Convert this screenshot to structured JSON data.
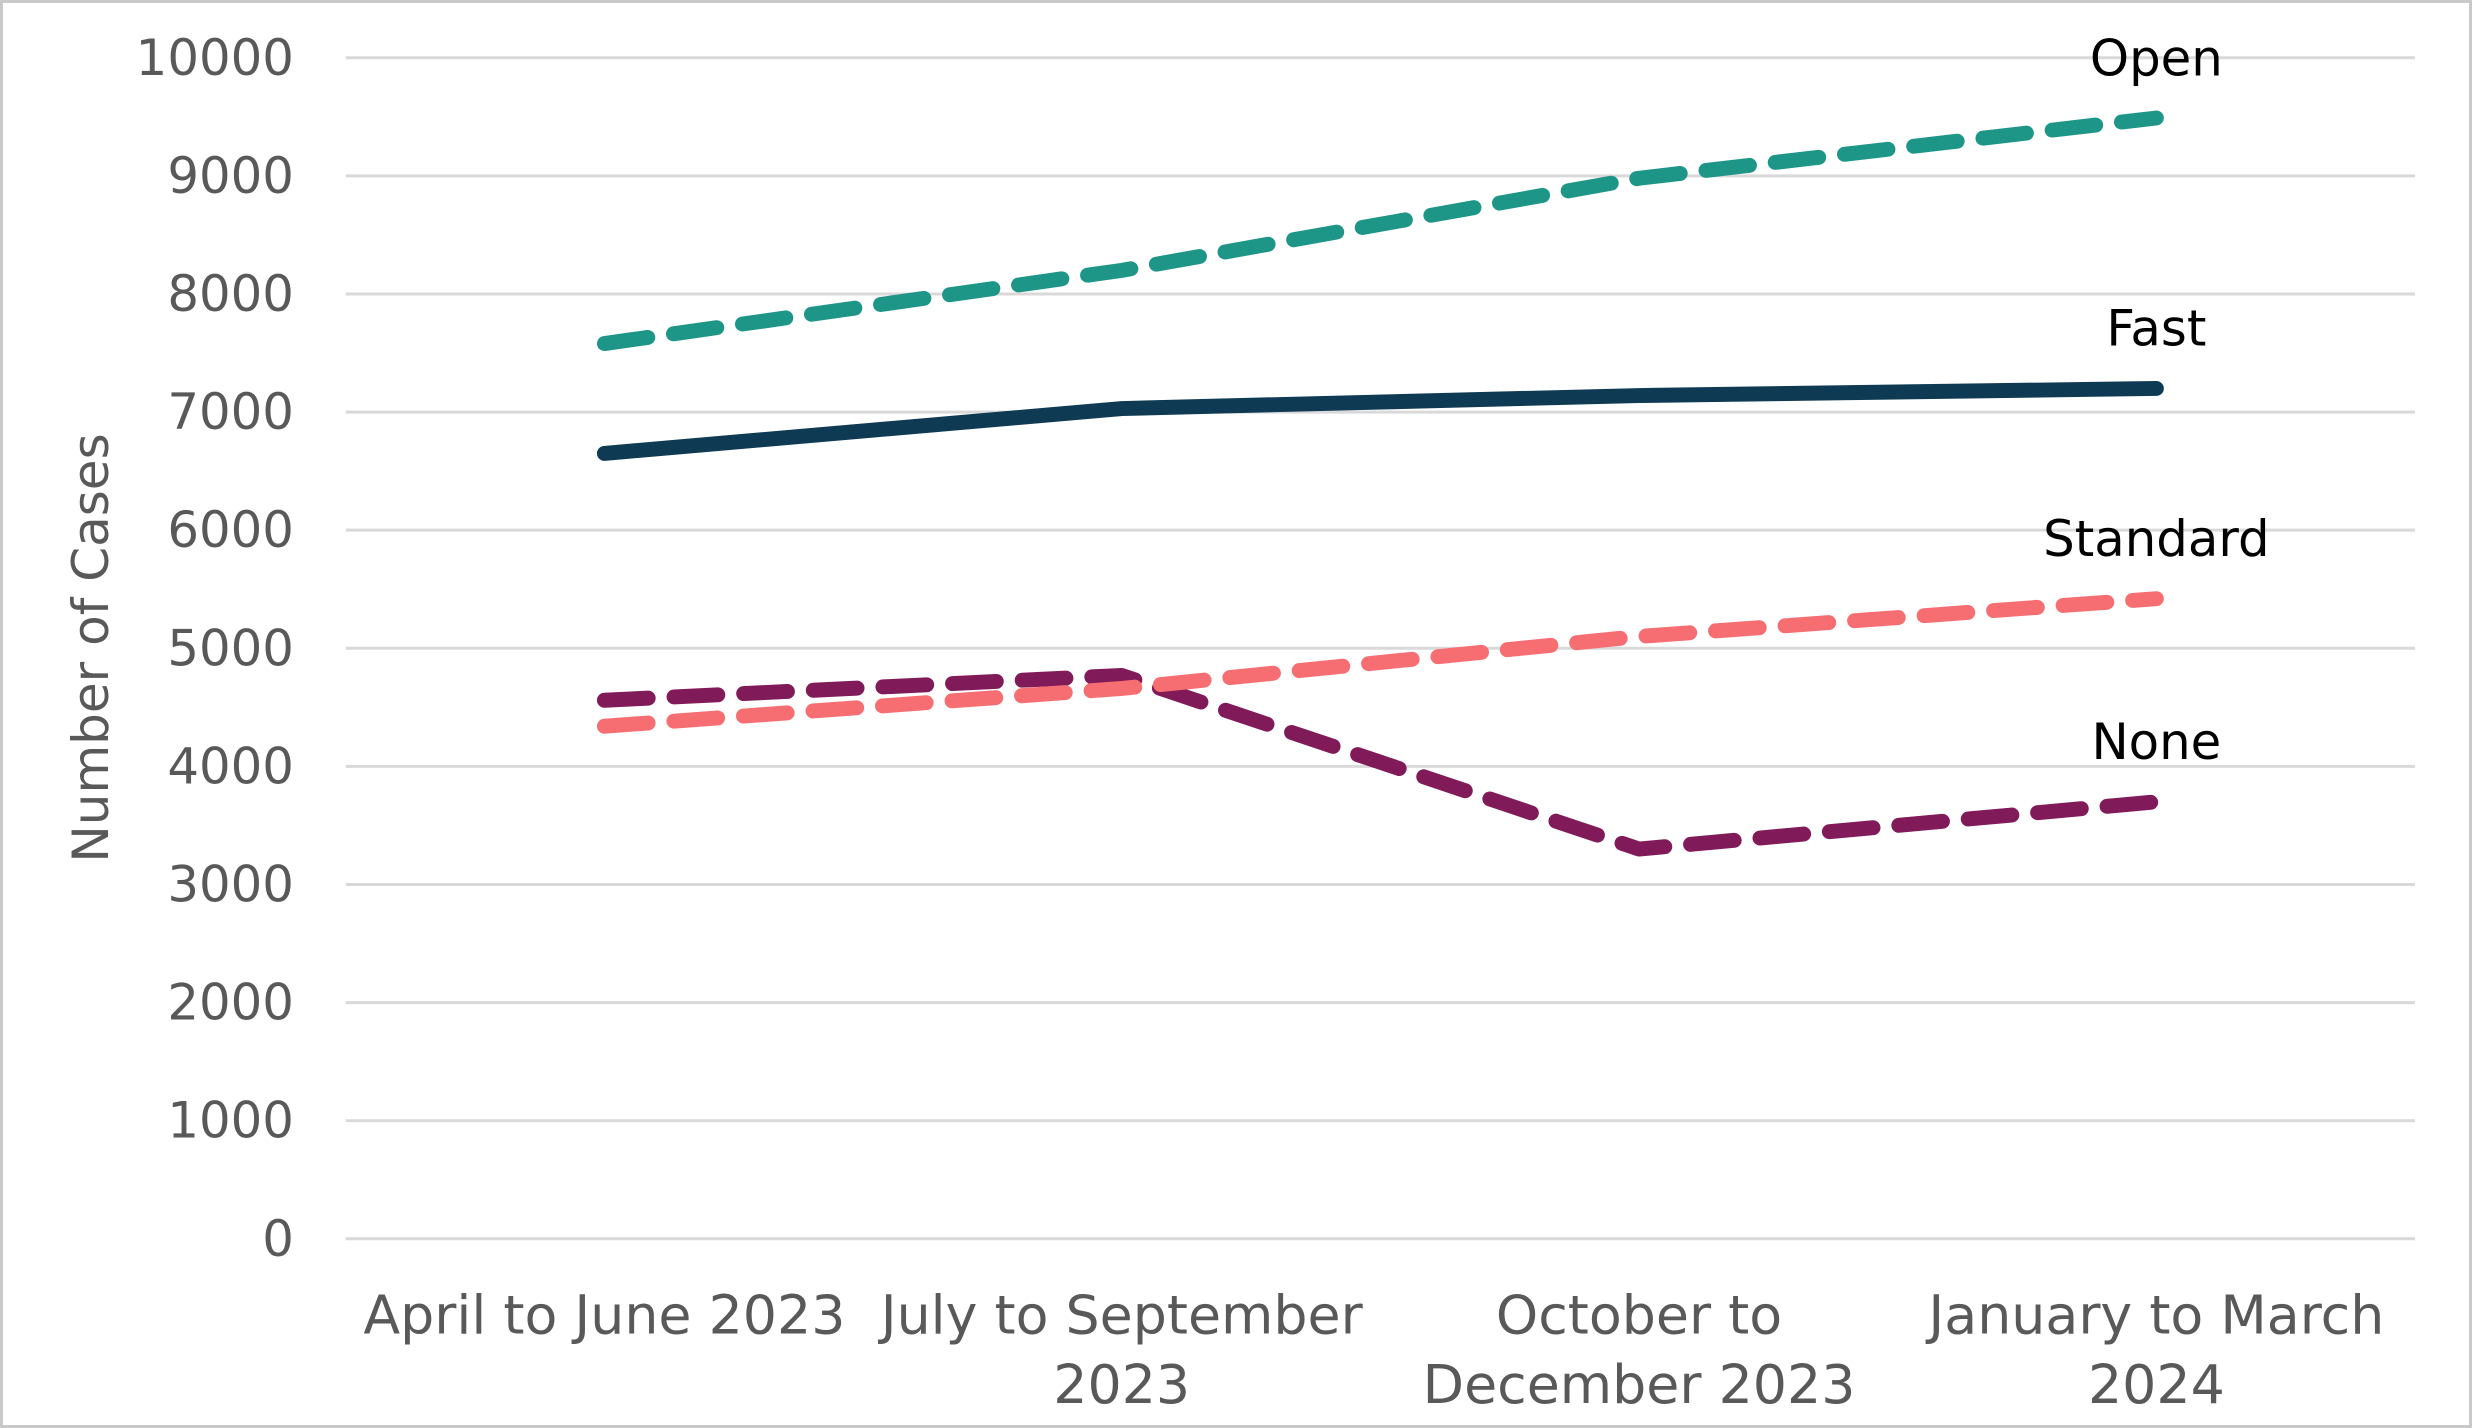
{
  "figure": {
    "background_color": "#ffffff",
    "border_color": "#c9c9c9",
    "gridline_color": "#d9d9d9",
    "axis_text_color": "#595959",
    "series_label_color": "#000000"
  },
  "chart_data": {
    "type": "line",
    "title": "",
    "xlabel": "",
    "ylabel": "Number of Cases",
    "ylim": [
      0,
      10000
    ],
    "y_tick_step": 1000,
    "y_tick_labels": [
      "0",
      "1000",
      "2000",
      "3000",
      "4000",
      "5000",
      "6000",
      "7000",
      "8000",
      "9000",
      "10000"
    ],
    "grid": "horizontal gridlines on",
    "legend_position": "direct labels at right end of each line",
    "categories": [
      "April to June 2023",
      "July to September 2023",
      "October to December 2023",
      "January to March 2024"
    ],
    "category_display_lines": [
      [
        "April to June 2023"
      ],
      [
        "July to September",
        "2023"
      ],
      [
        "October to",
        "December 2023"
      ],
      [
        "January to March",
        "2024"
      ]
    ],
    "series": [
      {
        "name": "Open",
        "color": "#1e9687",
        "line_style": "dashed",
        "values": [
          7580,
          8200,
          8980,
          9490
        ]
      },
      {
        "name": "Fast",
        "color": "#0e3a53",
        "line_style": "solid",
        "values": [
          6650,
          7030,
          7140,
          7200
        ]
      },
      {
        "name": "None",
        "color": "#801a58",
        "line_style": "dashed",
        "values": [
          4560,
          4770,
          3300,
          3700
        ]
      },
      {
        "name": "Standard",
        "color": "#f76e72",
        "line_style": "dashed",
        "values": [
          4340,
          4660,
          5100,
          5420
        ]
      }
    ]
  }
}
